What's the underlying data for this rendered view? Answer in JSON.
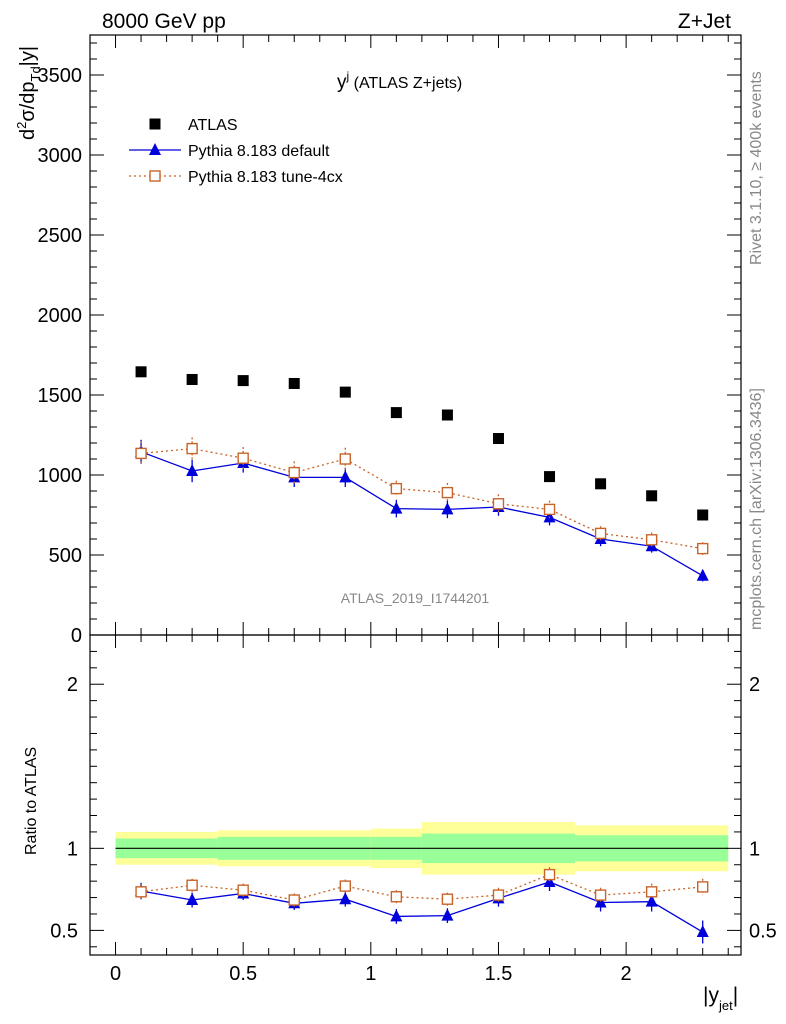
{
  "header": {
    "energy_label": "8000 GeV pp",
    "process_label": "Z+Jet"
  },
  "side_labels": {
    "rivet": "Rivet 3.1.10, ≥ 400k events",
    "mcplots": "mcplots.cern.ch [arXiv:1306.3436]"
  },
  "chart_data": [
    {
      "type": "scatter",
      "title": "y^j (ATLAS Z+jets)",
      "watermark": "ATLAS_2019_I1744201",
      "ylabel": "d²σ/dp_Td|y|",
      "ylim": [
        0,
        3750
      ],
      "xlim": [
        -0.1,
        2.45
      ],
      "y_ticks": [
        0,
        500,
        1000,
        1500,
        2000,
        2500,
        3000,
        3500
      ],
      "legend_position": "top-left",
      "x": [
        0.1,
        0.3,
        0.5,
        0.7,
        0.9,
        1.1,
        1.3,
        1.5,
        1.7,
        1.9,
        2.1,
        2.3
      ],
      "series": [
        {
          "name": "ATLAS",
          "color": "#000000",
          "marker": "square",
          "values": [
            1645,
            1597,
            1590,
            1572,
            1518,
            1390,
            1375,
            1228,
            990,
            945,
            870,
            750
          ]
        },
        {
          "name": "Pythia 8.183 default",
          "color": "#0000dd",
          "marker": "triangle",
          "values": [
            1145,
            1025,
            1075,
            985,
            985,
            790,
            785,
            800,
            735,
            600,
            555,
            370
          ],
          "errors": [
            75,
            70,
            60,
            60,
            60,
            55,
            55,
            55,
            50,
            45,
            40,
            35
          ]
        },
        {
          "name": "Pythia 8.183 tune-4cx",
          "color": "#c86428",
          "marker": "open-square",
          "values": [
            1135,
            1165,
            1105,
            1015,
            1100,
            915,
            890,
            820,
            785,
            635,
            595,
            540
          ],
          "errors": [
            75,
            70,
            70,
            70,
            70,
            50,
            60,
            60,
            55,
            45,
            45,
            40
          ]
        }
      ]
    },
    {
      "type": "scatter",
      "xlabel": "|y_jet|",
      "ylabel": "Ratio to ATLAS",
      "ylim": [
        0.35,
        2.3
      ],
      "xlim": [
        -0.1,
        2.45
      ],
      "y_ticks": [
        0.5,
        1,
        2
      ],
      "x_ticks": [
        0,
        0.5,
        1,
        1.5,
        2
      ],
      "x_tick_labels": [
        "0",
        "0.5",
        "1",
        "1.5",
        "2"
      ],
      "reference_line": 1,
      "bands": {
        "edges": [
          0.0,
          0.4,
          1.0,
          1.2,
          1.8,
          2.4
        ],
        "inner_color": "#99ff99",
        "outer_color": "#ffff99",
        "inner_half_width": [
          0.06,
          0.07,
          0.07,
          0.09,
          0.08
        ],
        "outer_half_width": [
          0.1,
          0.11,
          0.12,
          0.16,
          0.14
        ]
      },
      "x": [
        0.1,
        0.3,
        0.5,
        0.7,
        0.9,
        1.1,
        1.3,
        1.5,
        1.7,
        1.9,
        2.1,
        2.3
      ],
      "series": [
        {
          "name": "Pythia 8.183 default",
          "color": "#0000dd",
          "marker": "triangle",
          "values": [
            0.74,
            0.685,
            0.725,
            0.665,
            0.69,
            0.585,
            0.59,
            0.695,
            0.795,
            0.67,
            0.675,
            0.49
          ],
          "errors": [
            0.05,
            0.045,
            0.04,
            0.04,
            0.045,
            0.045,
            0.045,
            0.05,
            0.055,
            0.055,
            0.06,
            0.07
          ]
        },
        {
          "name": "Pythia 8.183 tune-4cx",
          "color": "#c86428",
          "marker": "open-square",
          "values": [
            0.735,
            0.775,
            0.745,
            0.685,
            0.77,
            0.705,
            0.69,
            0.715,
            0.84,
            0.715,
            0.735,
            0.765
          ],
          "errors": [
            0.045,
            0.04,
            0.04,
            0.04,
            0.04,
            0.04,
            0.04,
            0.045,
            0.045,
            0.045,
            0.05,
            0.05
          ]
        }
      ]
    }
  ]
}
